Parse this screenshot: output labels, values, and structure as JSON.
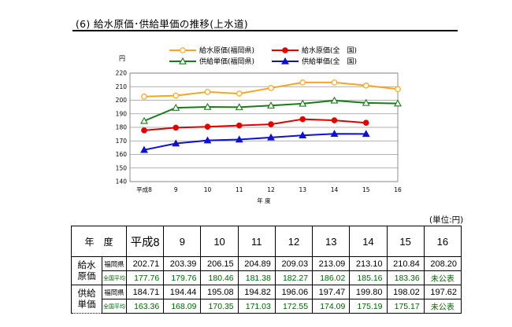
{
  "section_heading": "(6) 給水原価･供給単価の推移(上水道)",
  "colors": {
    "fukuoka_cost": "#f5a623",
    "national_cost": "#e00000",
    "fukuoka_price": "#1a7a1a",
    "national_price": "#1010d0"
  },
  "chart_data": {
    "type": "line",
    "unit_label": "円",
    "xlabel": "年 度",
    "categories": [
      "平成8",
      "9",
      "10",
      "11",
      "12",
      "13",
      "14",
      "15",
      "16"
    ],
    "ylim": [
      140,
      220
    ],
    "yticks": [
      140,
      150,
      160,
      170,
      180,
      190,
      200,
      210,
      220
    ],
    "grid": "horizontal",
    "legend_placement": "top",
    "series": [
      {
        "name": "給水原価(福岡県)",
        "color": "#f5a623",
        "marker": "open-circle",
        "values": [
          202.71,
          203.39,
          206.15,
          204.89,
          209.03,
          213.09,
          213.1,
          210.84,
          208.2
        ]
      },
      {
        "name": "給水原価(全　国)",
        "color": "#e00000",
        "marker": "filled-circle",
        "values": [
          177.76,
          179.76,
          180.46,
          181.38,
          182.27,
          186.02,
          185.16,
          183.36,
          null
        ]
      },
      {
        "name": "供給単価(福岡県)",
        "color": "#1a7a1a",
        "marker": "open-triangle",
        "values": [
          184.71,
          194.44,
          195.08,
          194.82,
          196.06,
          197.47,
          199.8,
          198.02,
          197.62
        ]
      },
      {
        "name": "供給単価(全　国)",
        "color": "#1010d0",
        "marker": "filled-triangle",
        "values": [
          163.36,
          168.09,
          170.35,
          171.03,
          172.55,
          174.09,
          175.19,
          175.17,
          null
        ]
      }
    ]
  },
  "table": {
    "unit_note": "(単位:円)",
    "corner_label": "年　度",
    "years": [
      "平成8",
      "9",
      "10",
      "11",
      "12",
      "13",
      "14",
      "15",
      "16"
    ],
    "groups": [
      {
        "label_line1": "給水",
        "label_line2": "原価",
        "rows": [
          {
            "label": "福岡県",
            "values": [
              "202.71",
              "203.39",
              "206.15",
              "204.89",
              "209.03",
              "213.09",
              "213.10",
              "210.84",
              "208.20"
            ]
          },
          {
            "label": "全国平均",
            "values": [
              "177.76",
              "179.76",
              "180.46",
              "181.38",
              "182.27",
              "186.02",
              "185.16",
              "183.36",
              "未公表"
            ]
          }
        ]
      },
      {
        "label_line1": "供給",
        "label_line2": "単価",
        "rows": [
          {
            "label": "福岡県",
            "values": [
              "184.71",
              "194.44",
              "195.08",
              "194.82",
              "196.06",
              "197.47",
              "199.80",
              "198.02",
              "197.62"
            ]
          },
          {
            "label": "全国平均",
            "values": [
              "163.36",
              "168.09",
              "170.35",
              "171.03",
              "172.55",
              "174.09",
              "175.19",
              "175.17",
              "未公表"
            ]
          }
        ]
      }
    ]
  }
}
